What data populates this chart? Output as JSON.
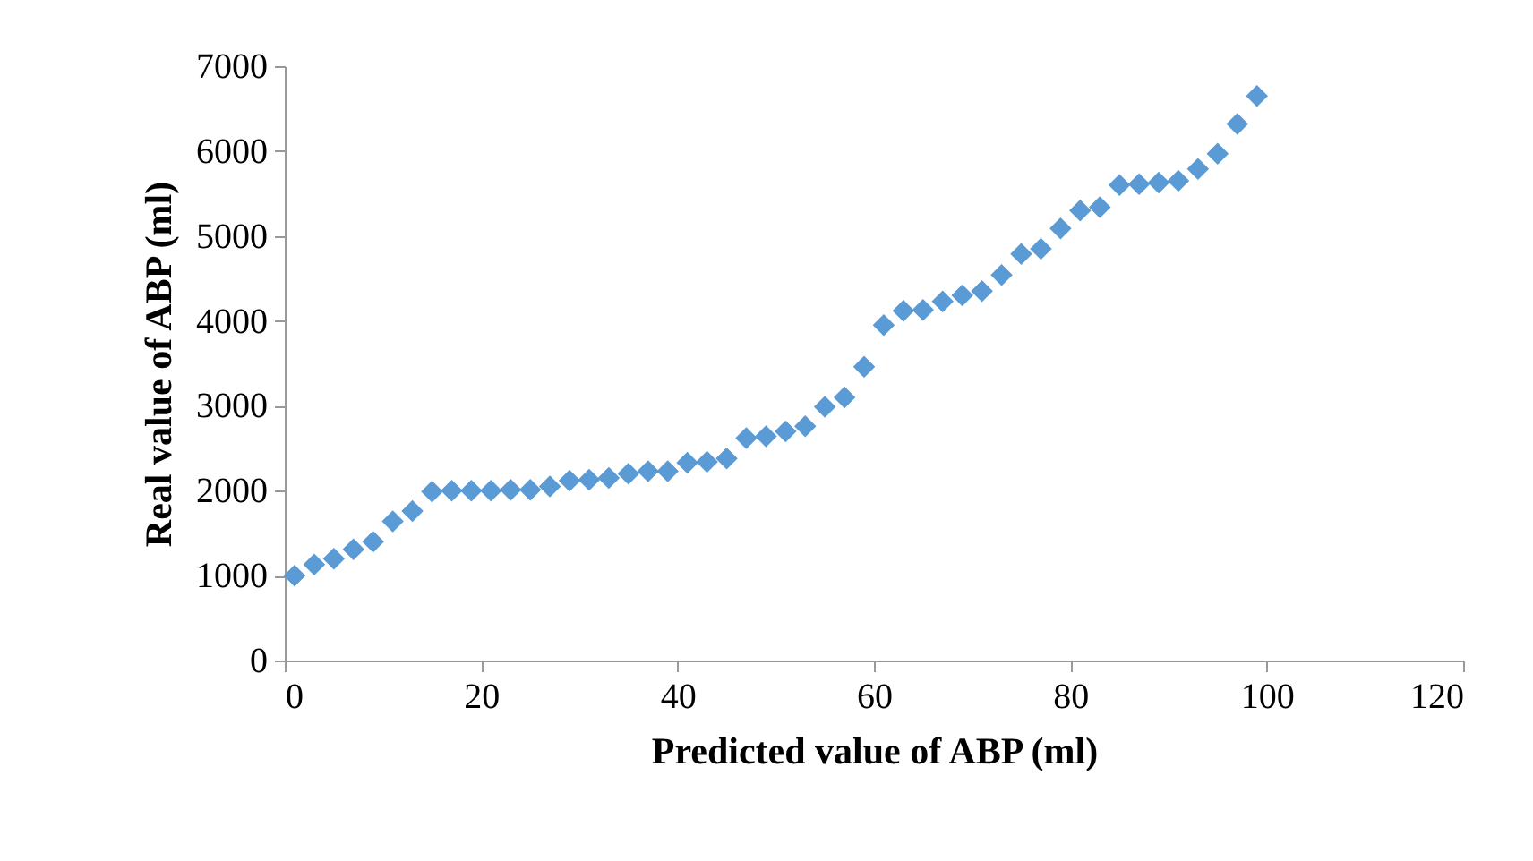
{
  "chart_data": {
    "type": "scatter",
    "xlabel": "Predicted value of ABP (ml)",
    "ylabel": "Real value of ABP (ml)",
    "marker": "diamond",
    "grid": false,
    "legend": false,
    "x": [
      1,
      3,
      5,
      7,
      9,
      11,
      13,
      15,
      17,
      19,
      21,
      23,
      25,
      27,
      29,
      31,
      33,
      35,
      37,
      39,
      41,
      43,
      45,
      47,
      49,
      51,
      53,
      55,
      57,
      59,
      61,
      63,
      65,
      67,
      69,
      71,
      73,
      75,
      77,
      79,
      81,
      83,
      85,
      87,
      89,
      91,
      93,
      95,
      97,
      99
    ],
    "series": [
      {
        "color": "#5b9bd5",
        "values": [
          1000,
          1130,
          1200,
          1310,
          1400,
          1640,
          1760,
          1990,
          2000,
          2000,
          2000,
          2010,
          2010,
          2050,
          2120,
          2130,
          2150,
          2200,
          2230,
          2230,
          2330,
          2340,
          2380,
          2620,
          2640,
          2700,
          2760,
          2990,
          3100,
          3460,
          3950,
          4120,
          4130,
          4230,
          4300,
          4350,
          4540,
          4790,
          4850,
          5090,
          5300,
          5340,
          5600,
          5610,
          5630,
          5650,
          5790,
          5970,
          6320,
          6650
        ]
      }
    ],
    "xlim": [
      0,
      120
    ],
    "xticks": [
      0,
      20,
      40,
      60,
      80,
      100,
      120
    ],
    "ylim": [
      0,
      7000
    ],
    "yticks": [
      0,
      1000,
      2000,
      3000,
      4000,
      5000,
      6000,
      7000
    ]
  }
}
